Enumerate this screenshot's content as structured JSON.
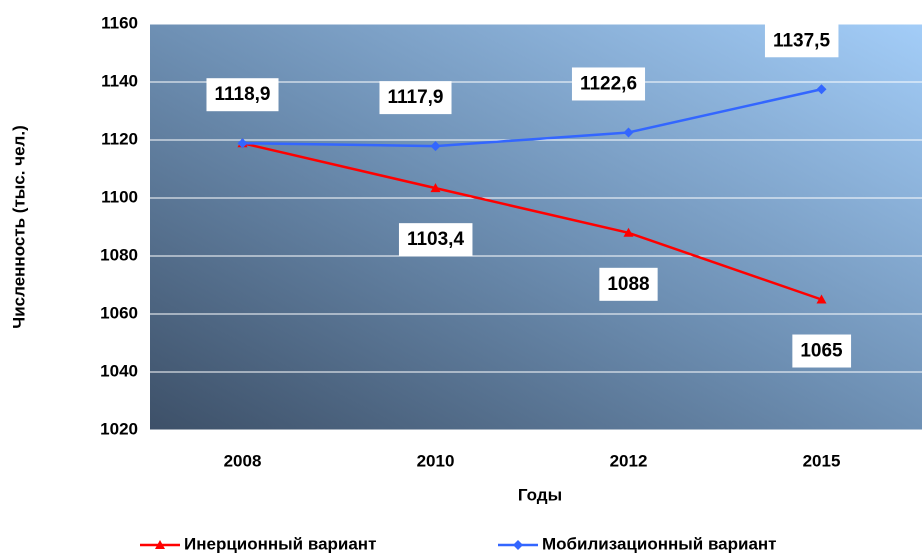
{
  "chart_data": {
    "type": "line",
    "y_label": "Численность (тыс. чел.)",
    "x_label": "Годы",
    "categories": [
      "2008",
      "2010",
      "2012",
      "2015"
    ],
    "series": [
      {
        "name": "Инерционный вариант",
        "color": "#ff0000",
        "marker": "triangle",
        "values": [
          1118.9,
          1103.4,
          1088,
          1065
        ],
        "value_labels": [
          null,
          "1103,4",
          "1088",
          "1065"
        ]
      },
      {
        "name": "Мобилизационный вариант",
        "color": "#3366ff",
        "marker": "diamond",
        "values": [
          1118.9,
          1117.9,
          1122.6,
          1137.5
        ],
        "value_labels": [
          "1118,9",
          "1117,9",
          "1122,6",
          "1137,5"
        ]
      }
    ],
    "ylim": [
      1020,
      1160
    ],
    "yticks": [
      1020,
      1040,
      1060,
      1080,
      1100,
      1120,
      1140,
      1160
    ],
    "grid": true
  }
}
